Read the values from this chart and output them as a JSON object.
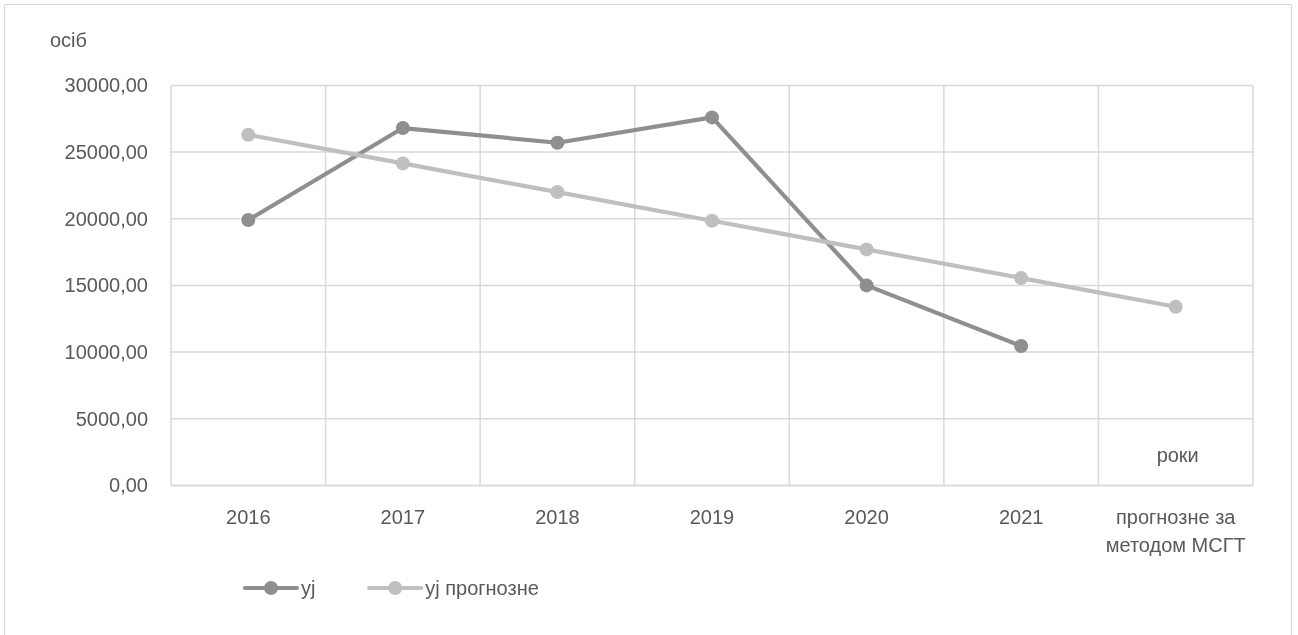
{
  "chart_data": {
    "type": "line",
    "ylabel": "осіб",
    "xlabel": "роки",
    "categories": [
      "2016",
      "2017",
      "2018",
      "2019",
      "2020",
      "2021",
      "прогнозне за методом МСГТ"
    ],
    "series": [
      {
        "name": "yj",
        "color": "#8f8f8f",
        "values": [
          19900,
          26800,
          25700,
          27600,
          15000,
          10450,
          null
        ]
      },
      {
        "name": "yj прогнозне",
        "color": "#bfbfbf",
        "values": [
          26300,
          24150,
          22000,
          19850,
          17700,
          15550,
          13400
        ]
      }
    ],
    "ylim": [
      0,
      30000
    ],
    "yticks": [
      {
        "value": 0,
        "label": "0,00"
      },
      {
        "value": 5000,
        "label": "5000,00"
      },
      {
        "value": 10000,
        "label": "10000,00"
      },
      {
        "value": 15000,
        "label": "15000,00"
      },
      {
        "value": 20000,
        "label": "20000,00"
      },
      {
        "value": 25000,
        "label": "25000,00"
      },
      {
        "value": 30000,
        "label": "30000,00"
      }
    ],
    "grid": true,
    "legend": "bottom",
    "marker": "circle",
    "line_style": "solid"
  }
}
